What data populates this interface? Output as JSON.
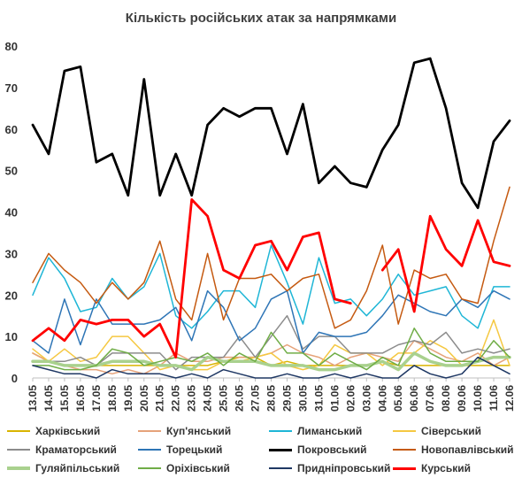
{
  "chart_data": {
    "type": "line",
    "title": "Кількість російських атак за напрямками",
    "xlabel": "",
    "ylabel": "",
    "ylim": [
      0,
      80
    ],
    "yticks": [
      0,
      10,
      20,
      30,
      40,
      50,
      60,
      70,
      80
    ],
    "grid": false,
    "legend_position": "bottom",
    "categories": [
      "13.05",
      "14.05",
      "15.05",
      "16.05",
      "17.05",
      "18.05",
      "19.05",
      "20.05",
      "21.05",
      "22.05",
      "23.05",
      "24.05",
      "25.05",
      "26.05",
      "27.05",
      "28.05",
      "29.05",
      "30.05",
      "31.05",
      "01.06",
      "02.06",
      "03.06",
      "04.06",
      "05.06",
      "06.06",
      "07.06",
      "08.06",
      "09.06",
      "10.06",
      "11.06",
      "12.06"
    ],
    "tick_labels": [
      "13.05",
      "14.05",
      "15.05",
      "16.05",
      "17.05",
      "18.05",
      "19.05",
      "20.05",
      "21.05",
      "22.05",
      "23.05",
      "24.05",
      "25.05",
      "26.05",
      "27.05",
      "28.05",
      "29.05",
      "30.05",
      "31.05",
      "01.06",
      "02.06",
      "03.06",
      "04.06",
      "05.06",
      "06.06",
      "07.06",
      "08.06",
      "09.06",
      "10.06",
      "11.06",
      "12.06"
    ],
    "series": [
      {
        "name": "Харківський",
        "color": "#d9b400",
        "width": 1.5,
        "values": [
          6,
          4,
          3,
          3,
          3,
          3,
          3,
          3,
          3,
          3,
          3,
          3,
          4,
          5,
          5,
          3,
          4,
          3,
          3,
          3,
          3,
          3,
          4,
          3,
          3,
          3,
          3,
          3,
          3,
          3,
          3
        ]
      },
      {
        "name": "Куп'янський",
        "color": "#e6a37a",
        "width": 1.5,
        "values": [
          6,
          4,
          3,
          2,
          2,
          1,
          2,
          1,
          3,
          6,
          4,
          4,
          5,
          5,
          5,
          6,
          8,
          6,
          5,
          3,
          5,
          6,
          5,
          4,
          9,
          7,
          5,
          4,
          6,
          3,
          5
        ]
      },
      {
        "name": "Лиманський",
        "color": "#1fb6d6",
        "width": 1.5,
        "values": [
          20,
          29,
          24,
          16,
          17,
          24,
          19,
          22,
          30,
          15,
          12,
          16,
          21,
          21,
          17,
          32,
          23,
          13,
          29,
          18,
          19,
          15,
          19,
          25,
          20,
          21,
          22,
          15,
          12,
          22,
          22
        ]
      },
      {
        "name": "Сіверський",
        "color": "#f5c842",
        "width": 1.5,
        "values": [
          7,
          4,
          7,
          4,
          5,
          10,
          10,
          6,
          2,
          3,
          2,
          2,
          4,
          4,
          5,
          6,
          3,
          2,
          3,
          8,
          6,
          6,
          3,
          6,
          6,
          9,
          7,
          3,
          4,
          14,
          3
        ]
      },
      {
        "name": "Краматорський",
        "color": "#8c8c8c",
        "width": 1.5,
        "values": [
          4,
          4,
          4,
          5,
          3,
          6,
          6,
          6,
          6,
          2,
          5,
          5,
          5,
          10,
          5,
          10,
          15,
          7,
          10,
          10,
          6,
          6,
          6,
          8,
          9,
          8,
          11,
          6,
          7,
          6,
          7
        ]
      },
      {
        "name": "Торецький",
        "color": "#2e75b6",
        "width": 1.5,
        "values": [
          9,
          6,
          19,
          8,
          19,
          13,
          13,
          13,
          14,
          17,
          9,
          21,
          17,
          9,
          12,
          19,
          21,
          6,
          11,
          10,
          10,
          11,
          15,
          20,
          18,
          16,
          15,
          19,
          17,
          21,
          19
        ]
      },
      {
        "name": "Покровський",
        "color": "#000000",
        "width": 2.8,
        "values": [
          61,
          54,
          74,
          75,
          52,
          54,
          44,
          72,
          44,
          54,
          44,
          61,
          65,
          63,
          65,
          65,
          54,
          66,
          47,
          51,
          47,
          46,
          55,
          61,
          76,
          77,
          65,
          47,
          41,
          57,
          62
        ]
      },
      {
        "name": "Новопавлівський",
        "color": "#c55a11",
        "width": 1.5,
        "values": [
          23,
          30,
          26,
          23,
          18,
          23,
          19,
          23,
          33,
          19,
          14,
          30,
          14,
          24,
          24,
          25,
          21,
          24,
          25,
          12,
          14,
          21,
          32,
          13,
          26,
          24,
          25,
          19,
          18,
          33,
          46
        ]
      },
      {
        "name": "Гуляйпільський",
        "color": "#a9d18e",
        "width": 3.5,
        "values": [
          4,
          4,
          3,
          3,
          3,
          4,
          4,
          4,
          3,
          3,
          2,
          5,
          4,
          4,
          4,
          3,
          3,
          3,
          2,
          2,
          3,
          3,
          4,
          2,
          6,
          4,
          3,
          3,
          4,
          5,
          5
        ]
      },
      {
        "name": "Оріхівський",
        "color": "#70ad47",
        "width": 1.5,
        "values": [
          3,
          3,
          2,
          2,
          3,
          7,
          6,
          3,
          4,
          5,
          4,
          6,
          3,
          6,
          4,
          11,
          6,
          6,
          3,
          6,
          4,
          2,
          5,
          3,
          12,
          6,
          4,
          4,
          4,
          9,
          5
        ]
      },
      {
        "name": "Придніпровський",
        "color": "#1f3864",
        "width": 1.5,
        "values": [
          3,
          2,
          1,
          1,
          0,
          2,
          1,
          1,
          1,
          0,
          1,
          0,
          2,
          1,
          0,
          0,
          1,
          0,
          0,
          1,
          0,
          1,
          0,
          0,
          3,
          1,
          0,
          1,
          5,
          3,
          1
        ]
      },
      {
        "name": "Курський",
        "color": "#ff0000",
        "width": 2.8,
        "values": [
          9,
          12,
          9,
          14,
          13,
          14,
          14,
          10,
          13,
          5,
          43,
          39,
          26,
          24,
          32,
          33,
          26,
          34,
          35,
          19,
          18,
          null,
          26,
          31,
          16,
          39,
          31,
          27,
          38,
          28,
          27
        ]
      }
    ]
  }
}
